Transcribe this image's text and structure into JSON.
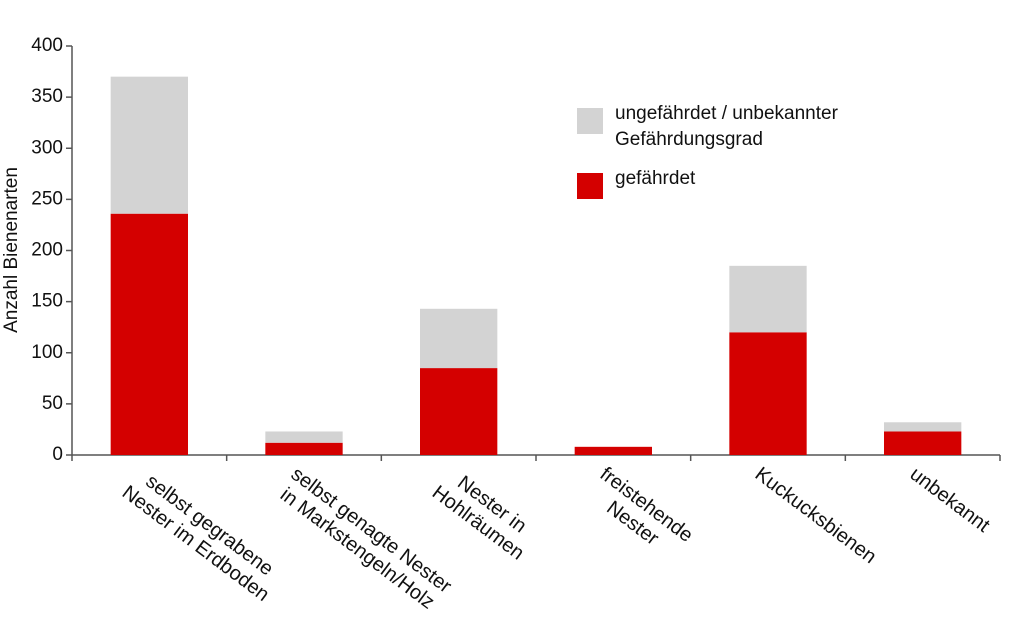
{
  "chart_data": {
    "type": "stacked_bar",
    "y_label": "Anzahl Bienenarten",
    "categories": [
      "selbst gegrabene\nNester im Erdboden",
      "selbst genagte Nester\nin Markstengeln/Holz",
      "Nester in\nHohlräumen",
      "freistehende\nNester",
      "Kuckucksbienen",
      "unbekannt"
    ],
    "series": [
      {
        "name": "gefährdet",
        "color": "#d40000",
        "values": [
          236,
          12,
          85,
          8,
          120,
          23
        ]
      },
      {
        "name": "ungefährdet / unbekannter\nGefährdungsgrad",
        "color": "#d3d3d3",
        "values": [
          134,
          11,
          58,
          0,
          65,
          9
        ]
      }
    ],
    "ylim": [
      0,
      400
    ],
    "yticks": [
      0,
      50,
      100,
      150,
      200,
      250,
      300,
      350,
      400
    ]
  }
}
